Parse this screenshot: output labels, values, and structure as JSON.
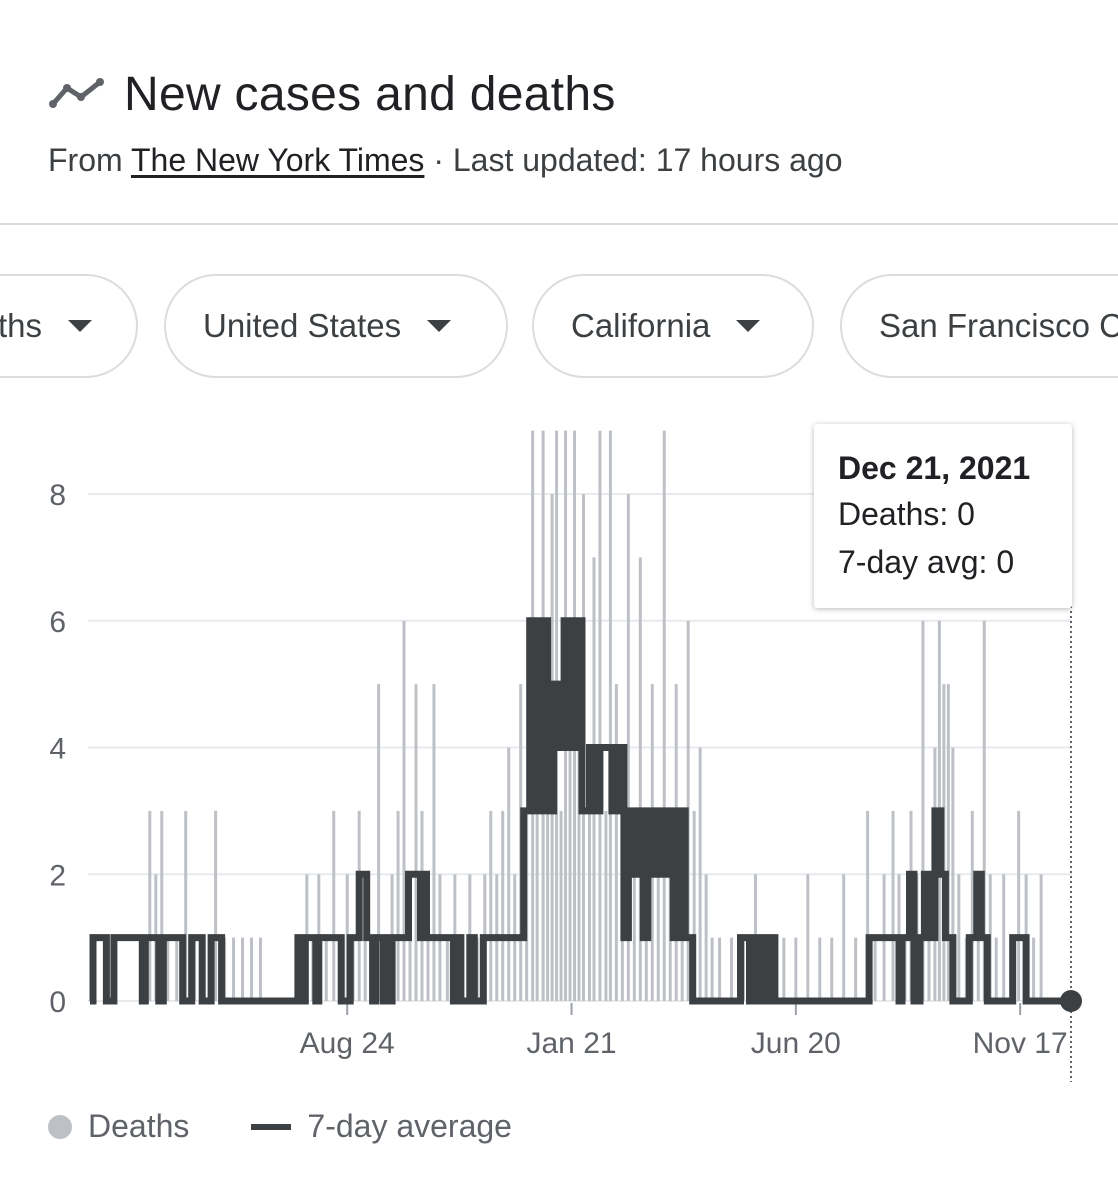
{
  "header": {
    "title": "New cases and deaths",
    "icon": "trending-line-icon",
    "source_prefix": "From",
    "source_name": "The New York Times",
    "updated": "· Last updated: 17 hours ago"
  },
  "filters": [
    {
      "label": "Deaths",
      "visible_label": "ths"
    },
    {
      "label": "United States"
    },
    {
      "label": "California"
    },
    {
      "label": "San Francisco County"
    }
  ],
  "tooltip": {
    "date": "Dec 21, 2021",
    "deaths": "Deaths: 0",
    "avg": "7-day avg: 0"
  },
  "legend": {
    "deaths": "Deaths",
    "avg": "7-day average"
  },
  "colors": {
    "bars": "#bdc1c6",
    "line": "#3c4043",
    "grid": "#e8eaed",
    "axis_text": "#5f6368"
  },
  "chart_data": {
    "type": "bar",
    "title": "",
    "xlabel": "",
    "ylabel": "",
    "ylim": [
      0,
      9
    ],
    "yticks": [
      0,
      2,
      4,
      6,
      8
    ],
    "date_start": "2020-03-05",
    "date_end": "2021-12-21",
    "xticks": [
      {
        "label": "Aug 24",
        "date": "2020-08-24"
      },
      {
        "label": "Jan 21",
        "date": "2021-01-21"
      },
      {
        "label": "Jun 20",
        "date": "2021-06-20"
      },
      {
        "label": "Nov 17",
        "date": "2021-11-17"
      }
    ],
    "series": [
      {
        "name": "Deaths",
        "kind": "bars",
        "points": [
          [
            "2020-04-10",
            1
          ],
          [
            "2020-04-14",
            3
          ],
          [
            "2020-04-18",
            2
          ],
          [
            "2020-04-22",
            3
          ],
          [
            "2020-04-26",
            1
          ],
          [
            "2020-05-02",
            1
          ],
          [
            "2020-05-08",
            3
          ],
          [
            "2020-05-14",
            1
          ],
          [
            "2020-05-20",
            1
          ],
          [
            "2020-05-28",
            3
          ],
          [
            "2020-06-03",
            1
          ],
          [
            "2020-06-09",
            1
          ],
          [
            "2020-06-15",
            1
          ],
          [
            "2020-06-21",
            1
          ],
          [
            "2020-06-27",
            1
          ],
          [
            "2020-07-28",
            2
          ],
          [
            "2020-08-01",
            1
          ],
          [
            "2020-08-05",
            2
          ],
          [
            "2020-08-10",
            1
          ],
          [
            "2020-08-15",
            3
          ],
          [
            "2020-08-20",
            1
          ],
          [
            "2020-08-24",
            2
          ],
          [
            "2020-08-28",
            1
          ],
          [
            "2020-09-01",
            3
          ],
          [
            "2020-09-05",
            2
          ],
          [
            "2020-09-09",
            1
          ],
          [
            "2020-09-14",
            5
          ],
          [
            "2020-09-19",
            1
          ],
          [
            "2020-09-23",
            2
          ],
          [
            "2020-09-27",
            3
          ],
          [
            "2020-10-01",
            6
          ],
          [
            "2020-10-05",
            1
          ],
          [
            "2020-10-09",
            5
          ],
          [
            "2020-10-13",
            3
          ],
          [
            "2020-10-17",
            1
          ],
          [
            "2020-10-21",
            5
          ],
          [
            "2020-10-25",
            2
          ],
          [
            "2020-10-30",
            1
          ],
          [
            "2020-11-04",
            2
          ],
          [
            "2020-11-09",
            1
          ],
          [
            "2020-11-14",
            2
          ],
          [
            "2020-11-19",
            1
          ],
          [
            "2020-11-24",
            2
          ],
          [
            "2020-11-28",
            3
          ],
          [
            "2020-12-02",
            2
          ],
          [
            "2020-12-06",
            3
          ],
          [
            "2020-12-10",
            4
          ],
          [
            "2020-12-14",
            2
          ],
          [
            "2020-12-18",
            5
          ],
          [
            "2020-12-22",
            3
          ],
          [
            "2020-12-26",
            9
          ],
          [
            "2020-12-29",
            4
          ],
          [
            "2021-01-02",
            9
          ],
          [
            "2021-01-05",
            5
          ],
          [
            "2021-01-08",
            8
          ],
          [
            "2021-01-11",
            9
          ],
          [
            "2021-01-14",
            3
          ],
          [
            "2021-01-17",
            9
          ],
          [
            "2021-01-20",
            5
          ],
          [
            "2021-01-23",
            9
          ],
          [
            "2021-01-26",
            4
          ],
          [
            "2021-01-29",
            8
          ],
          [
            "2021-02-02",
            3
          ],
          [
            "2021-02-05",
            7
          ],
          [
            "2021-02-09",
            9
          ],
          [
            "2021-02-13",
            3
          ],
          [
            "2021-02-16",
            9
          ],
          [
            "2021-02-20",
            5
          ],
          [
            "2021-02-24",
            3
          ],
          [
            "2021-02-28",
            8
          ],
          [
            "2021-03-04",
            2
          ],
          [
            "2021-03-08",
            7
          ],
          [
            "2021-03-12",
            3
          ],
          [
            "2021-03-16",
            5
          ],
          [
            "2021-03-20",
            2
          ],
          [
            "2021-03-24",
            9
          ],
          [
            "2021-03-28",
            2
          ],
          [
            "2021-04-01",
            5
          ],
          [
            "2021-04-05",
            3
          ],
          [
            "2021-04-09",
            6
          ],
          [
            "2021-04-13",
            3
          ],
          [
            "2021-04-17",
            4
          ],
          [
            "2021-04-21",
            2
          ],
          [
            "2021-04-25",
            1
          ],
          [
            "2021-04-30",
            1
          ],
          [
            "2021-05-08",
            1
          ],
          [
            "2021-05-16",
            1
          ],
          [
            "2021-05-24",
            2
          ],
          [
            "2021-05-30",
            1
          ],
          [
            "2021-06-05",
            1
          ],
          [
            "2021-06-12",
            1
          ],
          [
            "2021-06-20",
            1
          ],
          [
            "2021-06-28",
            2
          ],
          [
            "2021-07-06",
            1
          ],
          [
            "2021-07-14",
            1
          ],
          [
            "2021-07-22",
            2
          ],
          [
            "2021-07-30",
            1
          ],
          [
            "2021-08-07",
            3
          ],
          [
            "2021-08-12",
            1
          ],
          [
            "2021-08-18",
            2
          ],
          [
            "2021-08-24",
            3
          ],
          [
            "2021-08-28",
            2
          ],
          [
            "2021-09-01",
            1
          ],
          [
            "2021-09-05",
            3
          ],
          [
            "2021-09-09",
            2
          ],
          [
            "2021-09-13",
            6
          ],
          [
            "2021-09-17",
            2
          ],
          [
            "2021-09-21",
            4
          ],
          [
            "2021-09-24",
            6
          ],
          [
            "2021-09-27",
            5
          ],
          [
            "2021-09-30",
            5
          ],
          [
            "2021-10-03",
            4
          ],
          [
            "2021-10-07",
            2
          ],
          [
            "2021-10-12",
            1
          ],
          [
            "2021-10-16",
            3
          ],
          [
            "2021-10-20",
            2
          ],
          [
            "2021-10-24",
            6
          ],
          [
            "2021-10-28",
            2
          ],
          [
            "2021-11-01",
            1
          ],
          [
            "2021-11-06",
            2
          ],
          [
            "2021-11-11",
            1
          ],
          [
            "2021-11-16",
            3
          ],
          [
            "2021-11-21",
            2
          ],
          [
            "2021-11-26",
            1
          ],
          [
            "2021-12-01",
            2
          ]
        ]
      },
      {
        "name": "7-day average",
        "kind": "line",
        "points": [
          [
            "2020-03-05",
            0
          ],
          [
            "2020-03-07",
            1
          ],
          [
            "2020-03-14",
            1
          ],
          [
            "2020-03-16",
            0
          ],
          [
            "2020-03-19",
            0
          ],
          [
            "2020-03-21",
            1
          ],
          [
            "2020-04-07",
            1
          ],
          [
            "2020-04-09",
            0
          ],
          [
            "2020-04-11",
            1
          ],
          [
            "2020-04-18",
            1
          ],
          [
            "2020-04-20",
            0
          ],
          [
            "2020-04-23",
            1
          ],
          [
            "2020-05-04",
            1
          ],
          [
            "2020-05-06",
            0
          ],
          [
            "2020-05-10",
            0
          ],
          [
            "2020-05-12",
            1
          ],
          [
            "2020-05-17",
            1
          ],
          [
            "2020-05-19",
            0
          ],
          [
            "2020-05-23",
            0
          ],
          [
            "2020-05-25",
            1
          ],
          [
            "2020-05-30",
            1
          ],
          [
            "2020-06-01",
            0
          ],
          [
            "2020-07-20",
            0
          ],
          [
            "2020-07-22",
            1
          ],
          [
            "2020-07-25",
            0
          ],
          [
            "2020-07-27",
            1
          ],
          [
            "2020-08-01",
            1
          ],
          [
            "2020-08-03",
            0
          ],
          [
            "2020-08-05",
            1
          ],
          [
            "2020-08-18",
            1
          ],
          [
            "2020-08-20",
            0
          ],
          [
            "2020-08-24",
            0
          ],
          [
            "2020-08-26",
            1
          ],
          [
            "2020-08-30",
            1
          ],
          [
            "2020-09-01",
            2
          ],
          [
            "2020-09-04",
            2
          ],
          [
            "2020-09-06",
            1
          ],
          [
            "2020-09-08",
            1
          ],
          [
            "2020-09-10",
            0
          ],
          [
            "2020-09-12",
            1
          ],
          [
            "2020-09-15",
            1
          ],
          [
            "2020-09-17",
            0
          ],
          [
            "2020-09-19",
            1
          ],
          [
            "2020-09-21",
            0
          ],
          [
            "2020-09-23",
            1
          ],
          [
            "2020-10-01",
            1
          ],
          [
            "2020-10-04",
            2
          ],
          [
            "2020-10-10",
            2
          ],
          [
            "2020-10-12",
            1
          ],
          [
            "2020-10-14",
            2
          ],
          [
            "2020-10-16",
            1
          ],
          [
            "2020-11-01",
            1
          ],
          [
            "2020-11-03",
            0
          ],
          [
            "2020-11-06",
            1
          ],
          [
            "2020-11-08",
            0
          ],
          [
            "2020-11-12",
            0
          ],
          [
            "2020-11-14",
            1
          ],
          [
            "2020-11-17",
            0
          ],
          [
            "2020-11-21",
            0
          ],
          [
            "2020-11-23",
            1
          ],
          [
            "2020-12-16",
            1
          ],
          [
            "2020-12-20",
            3
          ],
          [
            "2020-12-24",
            6
          ],
          [
            "2020-12-28",
            3
          ],
          [
            "2021-01-01",
            6
          ],
          [
            "2021-01-05",
            3
          ],
          [
            "2021-01-09",
            5
          ],
          [
            "2021-01-12",
            4
          ],
          [
            "2021-01-16",
            6
          ],
          [
            "2021-01-20",
            4
          ],
          [
            "2021-01-24",
            6
          ],
          [
            "2021-01-28",
            3
          ],
          [
            "2021-02-02",
            4
          ],
          [
            "2021-02-06",
            3
          ],
          [
            "2021-02-09",
            4
          ],
          [
            "2021-02-14",
            4
          ],
          [
            "2021-02-17",
            3
          ],
          [
            "2021-02-21",
            4
          ],
          [
            "2021-02-25",
            1
          ],
          [
            "2021-02-28",
            3
          ],
          [
            "2021-03-03",
            2
          ],
          [
            "2021-03-07",
            3
          ],
          [
            "2021-03-10",
            1
          ],
          [
            "2021-03-13",
            3
          ],
          [
            "2021-03-17",
            2
          ],
          [
            "2021-03-20",
            3
          ],
          [
            "2021-03-23",
            2
          ],
          [
            "2021-03-27",
            3
          ],
          [
            "2021-03-30",
            1
          ],
          [
            "2021-04-03",
            3
          ],
          [
            "2021-04-07",
            1
          ],
          [
            "2021-04-10",
            1
          ],
          [
            "2021-04-12",
            0
          ],
          [
            "2021-05-12",
            0
          ],
          [
            "2021-05-14",
            1
          ],
          [
            "2021-05-18",
            1
          ],
          [
            "2021-05-20",
            0
          ],
          [
            "2021-05-24",
            1
          ],
          [
            "2021-05-28",
            0
          ],
          [
            "2021-05-30",
            1
          ],
          [
            "2021-06-02",
            0
          ],
          [
            "2021-06-04",
            1
          ],
          [
            "2021-06-06",
            0
          ],
          [
            "2021-08-06",
            0
          ],
          [
            "2021-08-08",
            1
          ],
          [
            "2021-08-26",
            1
          ],
          [
            "2021-08-28",
            0
          ],
          [
            "2021-08-30",
            1
          ],
          [
            "2021-09-04",
            2
          ],
          [
            "2021-09-07",
            0
          ],
          [
            "2021-09-11",
            1
          ],
          [
            "2021-09-14",
            2
          ],
          [
            "2021-09-18",
            1
          ],
          [
            "2021-09-21",
            3
          ],
          [
            "2021-09-25",
            2
          ],
          [
            "2021-09-28",
            1
          ],
          [
            "2021-10-01",
            1
          ],
          [
            "2021-10-03",
            0
          ],
          [
            "2021-10-12",
            0
          ],
          [
            "2021-10-14",
            1
          ],
          [
            "2021-10-17",
            1
          ],
          [
            "2021-10-19",
            2
          ],
          [
            "2021-10-22",
            1
          ],
          [
            "2021-10-24",
            1
          ],
          [
            "2021-10-26",
            0
          ],
          [
            "2021-11-10",
            0
          ],
          [
            "2021-11-12",
            1
          ],
          [
            "2021-11-19",
            1
          ],
          [
            "2021-11-21",
            0
          ],
          [
            "2021-12-21",
            0
          ]
        ]
      }
    ],
    "highlight": {
      "date": "2021-12-21",
      "value": 0
    },
    "grid": true,
    "legend_position": "bottom-left"
  }
}
